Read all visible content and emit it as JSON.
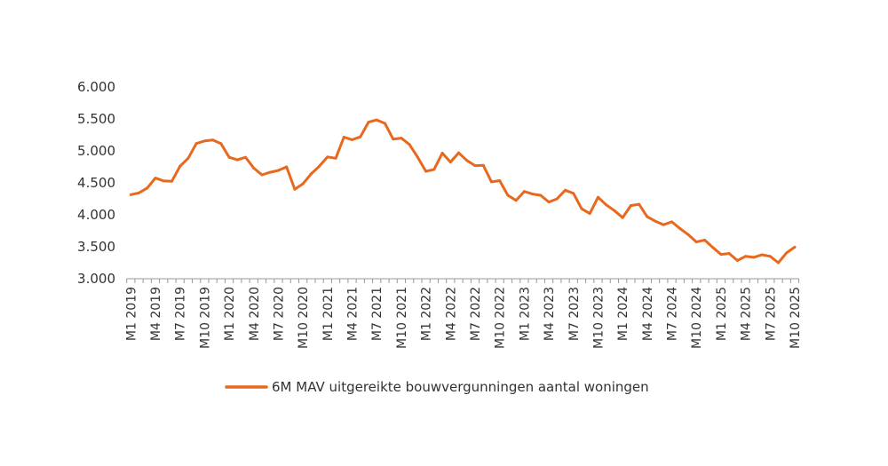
{
  "chart_data": {
    "type": "line",
    "title": "",
    "xlabel": "",
    "ylabel": "",
    "ylim": [
      3000,
      6000
    ],
    "yticks": [
      "3.000",
      "3.500",
      "4.000",
      "4.500",
      "5.000",
      "5.500",
      "6.000"
    ],
    "ytick_values": [
      3000,
      3500,
      4000,
      4500,
      5000,
      5500,
      6000
    ],
    "grid": false,
    "legend_position": "bottom",
    "x_label_every": 3,
    "series": [
      {
        "name": "6M MAV uitgereikte bouwvergunningen aantal woningen",
        "color": "#E8691E",
        "values": [
          4315,
          4343,
          4420,
          4575,
          4530,
          4525,
          4760,
          4885,
          5115,
          5155,
          5170,
          5115,
          4900,
          4860,
          4900,
          4730,
          4625,
          4665,
          4695,
          4750,
          4400,
          4485,
          4640,
          4760,
          4905,
          4885,
          5215,
          5175,
          5220,
          5450,
          5485,
          5430,
          5185,
          5200,
          5100,
          4900,
          4680,
          4710,
          4965,
          4825,
          4970,
          4850,
          4770,
          4775,
          4515,
          4535,
          4305,
          4225,
          4365,
          4325,
          4305,
          4200,
          4250,
          4385,
          4335,
          4095,
          4020,
          4275,
          4155,
          4065,
          3955,
          4145,
          4165,
          3970,
          3900,
          3845,
          3890,
          3785,
          3690,
          3575,
          3605,
          3490,
          3380,
          3395,
          3285,
          3350,
          3335,
          3375,
          3350,
          3250,
          3405,
          3495
        ]
      }
    ],
    "categories": [
      "M1 2019",
      "M2 2019",
      "M3 2019",
      "M4 2019",
      "M5 2019",
      "M6 2019",
      "M7 2019",
      "M8 2019",
      "M9 2019",
      "M10 2019",
      "M11 2019",
      "M12 2019",
      "M1 2020",
      "M2 2020",
      "M3 2020",
      "M4 2020",
      "M5 2020",
      "M6 2020",
      "M7 2020",
      "M8 2020",
      "M9 2020",
      "M10 2020",
      "M11 2020",
      "M12 2020",
      "M1 2021",
      "M2 2021",
      "M3 2021",
      "M4 2021",
      "M5 2021",
      "M6 2021",
      "M7 2021",
      "M8 2021",
      "M9 2021",
      "M10 2021",
      "M11 2021",
      "M12 2021",
      "M1 2022",
      "M2 2022",
      "M3 2022",
      "M4 2022",
      "M5 2022",
      "M6 2022",
      "M7 2022",
      "M8 2022",
      "M9 2022",
      "M10 2022",
      "M11 2022",
      "M12 2022",
      "M1 2023",
      "M2 2023",
      "M3 2023",
      "M4 2023",
      "M5 2023",
      "M6 2023",
      "M7 2023",
      "M8 2023",
      "M9 2023",
      "M10 2023",
      "M11 2023",
      "M12 2023",
      "M1 2024",
      "M2 2024",
      "M3 2024",
      "M4 2024",
      "M5 2024",
      "M6 2024",
      "M7 2024",
      "M8 2024",
      "M9 2024",
      "M10 2024",
      "M11 2024",
      "M12 2024",
      "M1 2025",
      "M2 2025",
      "M3 2025",
      "M4 2025",
      "M5 2025",
      "M6 2025",
      "M7 2025",
      "M8 2025",
      "M9 2025",
      "M10 2025"
    ]
  }
}
